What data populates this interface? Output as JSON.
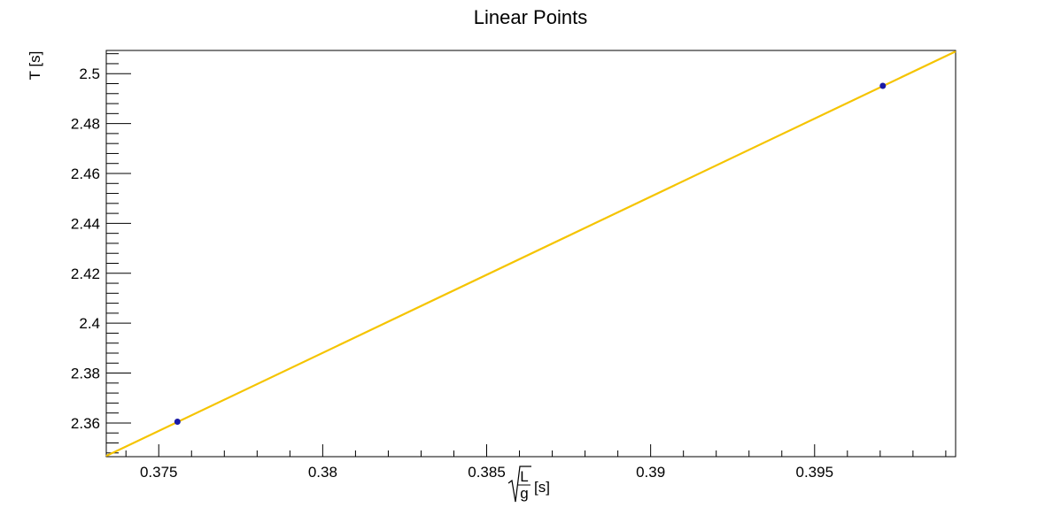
{
  "chart_data": {
    "type": "scatter",
    "title": "Linear Points",
    "xlabel": "√(L/g) [s]",
    "xlabel_parts": {
      "numerator": "L",
      "denominator": "g",
      "unit": "[s]"
    },
    "ylabel": "T [s]",
    "xlim": [
      0.3734,
      0.3993
    ],
    "ylim": [
      2.3465,
      2.5093
    ],
    "x_ticks": [
      "0.375",
      "0.38",
      "0.385",
      "0.39",
      "0.395"
    ],
    "y_ticks": [
      "2.36",
      "2.38",
      "2.4",
      "2.42",
      "2.44",
      "2.46",
      "2.48",
      "2.5"
    ],
    "grid": false,
    "colors": {
      "points": "#1a1aa6",
      "fit_line": "#f5c400",
      "axes": "#000000"
    },
    "series": [
      {
        "name": "data",
        "mark": "point",
        "x": [
          0.37557,
          0.39708
        ],
        "y": [
          2.3605,
          2.4951
        ]
      },
      {
        "name": "fit",
        "mark": "line",
        "x": [
          0.3734,
          0.3993
        ],
        "y": [
          2.3468,
          2.5089
        ]
      }
    ]
  }
}
